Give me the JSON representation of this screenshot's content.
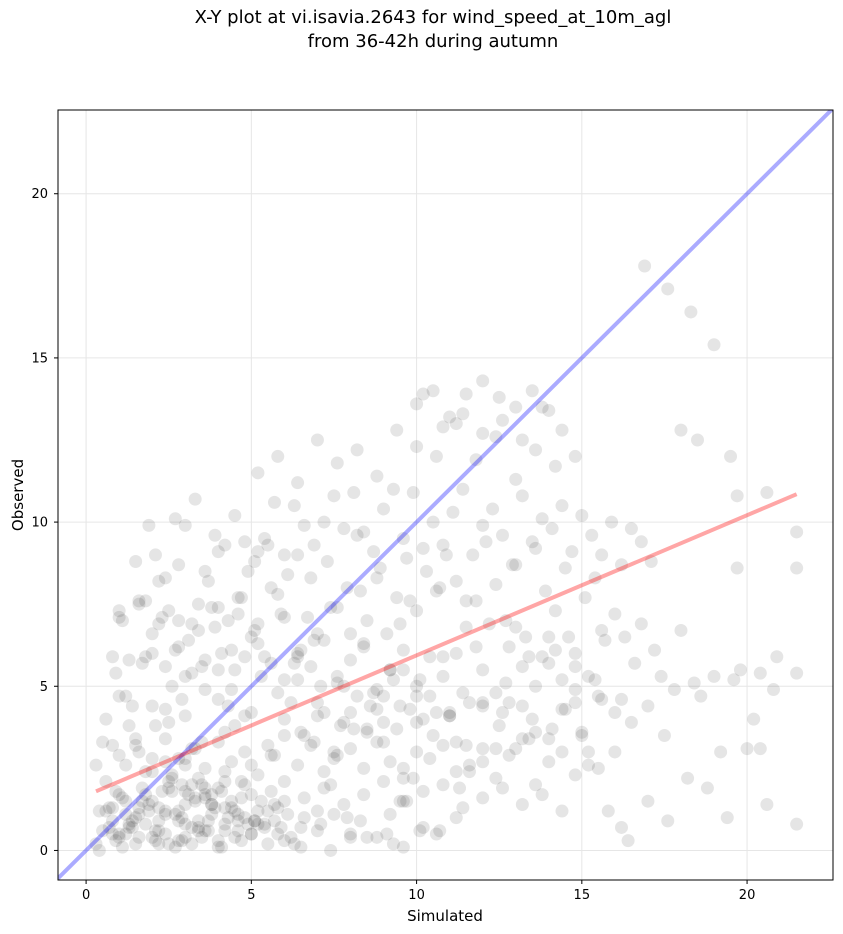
{
  "chart_data": {
    "type": "scatter",
    "title_line1": "X-Y plot at vi.isavia.2643 for wind_speed_at_10m_agl",
    "title_line2": "from 36-42h during autumn",
    "xlabel": "Simulated",
    "ylabel": "Observed",
    "xlim": [
      -0.85,
      22.6
    ],
    "ylim": [
      -0.9,
      22.55
    ],
    "xticks": [
      0,
      5,
      10,
      15,
      20
    ],
    "yticks": [
      0,
      5,
      10,
      15,
      20
    ],
    "grid": true,
    "colors": {
      "points": "#000000",
      "identity_line": "#0000ff",
      "fit_line": "#ff0000"
    },
    "identity_line": {
      "x": [
        -0.85,
        22.6
      ],
      "y": [
        -0.85,
        22.6
      ]
    },
    "fit_line": {
      "x": [
        0.3,
        21.5
      ],
      "y": [
        1.8,
        10.85
      ]
    },
    "points_x": [
      0.5,
      0.8,
      1.0,
      1.2,
      1.4,
      1.6,
      1.8,
      2.0,
      2.2,
      2.4,
      2.6,
      2.8,
      3.0,
      3.2,
      3.4,
      3.6,
      3.8,
      4.0,
      4.2,
      4.4,
      4.6,
      4.8,
      5.0,
      5.2,
      5.4,
      1.1,
      1.5,
      1.9,
      2.3,
      2.7,
      3.1,
      3.5,
      3.9,
      4.3,
      4.7,
      5.1,
      5.5,
      5.9,
      0.9,
      1.3,
      1.7,
      2.1,
      2.5,
      2.9,
      3.3,
      3.7,
      4.1,
      4.5,
      4.9,
      5.3,
      5.7,
      6.1,
      0.6,
      1.0,
      1.4,
      1.8,
      2.2,
      2.6,
      3.0,
      3.4,
      3.8,
      4.2,
      4.6,
      5.0,
      5.4,
      5.8,
      6.2,
      6.6,
      2.4,
      2.8,
      3.2,
      3.6,
      4.0,
      4.4,
      4.8,
      3.0,
      3.4,
      3.8,
      4.2,
      4.6,
      2.6,
      3.0,
      3.4,
      3.8,
      4.2,
      0.3,
      0.4,
      0.6,
      0.8,
      1.0,
      1.2,
      1.5,
      1.8,
      2.1,
      2.4,
      2.7,
      3.0,
      0.5,
      0.7,
      0.9,
      1.1,
      1.3,
      1.6,
      1.9,
      2.2,
      2.5,
      2.8,
      3.2,
      3.6,
      4.0,
      4.5,
      5.0,
      5.5,
      6.0,
      6.5,
      7.0,
      7.5,
      8.0,
      0.6,
      0.9,
      1.2,
      1.5,
      1.8,
      2.1,
      2.4,
      2.7,
      3.0,
      3.3,
      3.6,
      3.9,
      4.2,
      4.5,
      4.8,
      5.1,
      5.4,
      5.7,
      6.0,
      6.3,
      6.6,
      6.9,
      7.2,
      7.5,
      7.8,
      8.1,
      8.4,
      8.7,
      9.0,
      9.3,
      9.6,
      0.8,
      1.1,
      1.4,
      1.7,
      2.0,
      2.3,
      2.6,
      2.9,
      3.2,
      3.5,
      3.8,
      4.1,
      4.4,
      4.7,
      5.0,
      5.3,
      5.6,
      5.9,
      6.2,
      6.5,
      6.8,
      7.1,
      7.4,
      7.7,
      8.0,
      8.3,
      8.6,
      8.9,
      9.2,
      9.5,
      9.8,
      10.1,
      10.4,
      10.7,
      11.0,
      1.0,
      1.3,
      1.6,
      1.9,
      2.2,
      2.5,
      2.8,
      3.1,
      3.4,
      3.7,
      4.0,
      4.3,
      4.6,
      4.9,
      5.2,
      5.5,
      5.8,
      6.1,
      6.4,
      6.7,
      7.0,
      7.3,
      7.6,
      7.9,
      8.2,
      8.5,
      8.8,
      9.1,
      9.4,
      9.7,
      10.0,
      10.3,
      10.6,
      10.9,
      11.2,
      11.5,
      11.8,
      12.1,
      12.4,
      12.7,
      13.0,
      13.3,
      13.6,
      13.9,
      14.2,
      14.5,
      14.8,
      15.1,
      15.4,
      15.7,
      16.0,
      1.5,
      1.8,
      2.1,
      2.4,
      2.7,
      3.0,
      3.3,
      3.6,
      3.9,
      4.2,
      4.5,
      4.8,
      5.1,
      5.4,
      5.7,
      6.0,
      6.3,
      6.6,
      6.9,
      7.2,
      7.5,
      7.8,
      8.1,
      8.4,
      8.7,
      9.0,
      9.3,
      9.6,
      9.9,
      10.2,
      10.5,
      10.8,
      11.1,
      11.4,
      11.7,
      12.0,
      12.3,
      12.6,
      12.9,
      13.2,
      13.5,
      13.8,
      14.1,
      14.4,
      14.7,
      15.0,
      15.3,
      15.6,
      15.9,
      16.2,
      16.5,
      16.8,
      17.1,
      2.0,
      2.4,
      2.8,
      3.2,
      3.6,
      4.0,
      4.4,
      4.8,
      5.2,
      5.6,
      6.0,
      6.4,
      6.8,
      7.2,
      7.6,
      8.0,
      8.4,
      8.8,
      9.2,
      9.6,
      10.0,
      10.4,
      10.8,
      11.2,
      11.6,
      12.0,
      12.4,
      12.8,
      13.2,
      13.6,
      14.0,
      14.4,
      14.8,
      15.2,
      15.6,
      1.0,
      1.5,
      2.0,
      2.5,
      3.0,
      3.5,
      4.0,
      4.5,
      5.0,
      5.5,
      6.0,
      6.5,
      7.0,
      7.5,
      8.0,
      8.5,
      9.0,
      9.5,
      10.0,
      10.5,
      11.0,
      11.5,
      12.0,
      12.5,
      13.0,
      13.5,
      14.0,
      14.5,
      15.0,
      15.5,
      16.0,
      16.5,
      17.0,
      17.5,
      5.2,
      5.8,
      6.4,
      7.0,
      7.6,
      8.2,
      8.8,
      9.4,
      10.0,
      10.6,
      11.2,
      11.8,
      12.4,
      13.0,
      13.6,
      14.2,
      14.8,
      0.8,
      1.2,
      1.6,
      2.0,
      2.4,
      2.8,
      3.2,
      3.6,
      4.0,
      4.4,
      4.8,
      5.2,
      5.6,
      6.0,
      6.4,
      6.8,
      7.2,
      7.6,
      8.0,
      8.4,
      8.8,
      9.2,
      9.6,
      10.0,
      10.4,
      10.8,
      11.2,
      11.6,
      12.0,
      12.4,
      12.8,
      13.2,
      13.6,
      14.0,
      14.4,
      14.8,
      15.2,
      6.0,
      6.6,
      7.2,
      7.8,
      8.4,
      9.0,
      9.6,
      10.2,
      10.8,
      11.4,
      12.0,
      12.6,
      13.2,
      13.8,
      14.4,
      9.5,
      10.0,
      10.5,
      11.0,
      11.5,
      12.0,
      12.5,
      13.0,
      13.5,
      14.0,
      10.2,
      10.8,
      11.4,
      12.0,
      12.6,
      13.2,
      13.8,
      14.4,
      1.0,
      1.6,
      2.2,
      2.8,
      3.4,
      4.0,
      4.6,
      5.2,
      5.8,
      6.4,
      7.0,
      7.6,
      8.2,
      8.8,
      9.4,
      10.0,
      10.6,
      11.2,
      11.8,
      12.4,
      13.0,
      13.6,
      14.2,
      14.8,
      15.4,
      16.0,
      16.6,
      17.2,
      17.8,
      18.4,
      19.0,
      19.6,
      20.2,
      20.8,
      21.5,
      9.0,
      9.6,
      10.2,
      10.8,
      11.4,
      12.0,
      12.6,
      13.2,
      13.8,
      14.4,
      15.0,
      15.6,
      16.2,
      16.8,
      17.4,
      18.0,
      18.6,
      19.2,
      19.8,
      20.4,
      11.0,
      11.6,
      12.2,
      12.8,
      13.4,
      14.0,
      14.6,
      15.2,
      15.8,
      16.4,
      17.0,
      17.6,
      18.2,
      18.8,
      19.4,
      20.0,
      20.6,
      21.5,
      0.3,
      0.7,
      1.0,
      1.3,
      1.7,
      2.0,
      2.4,
      2.9,
      3.3,
      3.7,
      4.2,
      4.7,
      5.1,
      5.6,
      6.0,
      6.5,
      7.0,
      7.4,
      7.9,
      8.3,
      8.8,
      9.3,
      9.7,
      10.2,
      10.7,
      11.2,
      0.4,
      0.8,
      1.2,
      1.6,
      2.0,
      2.5,
      3.0,
      3.5,
      4.1,
      4.7,
      5.2,
      5.8,
      6.3,
      6.9,
      7.4,
      8.0,
      8.5,
      9.1,
      9.6,
      10.1,
      2.2,
      2.9,
      3.6,
      4.3,
      5.0,
      5.7,
      6.4,
      7.1,
      7.8,
      8.5,
      9.2,
      9.9,
      10.6,
      11.3,
      12.0,
      12.7,
      13.4,
      14.1,
      14.8,
      15.5,
      16.2,
      16.9,
      17.6,
      18.3,
      19.0,
      19.7,
      20.4,
      20.9,
      11.5,
      16.3,
      19.7,
      9.8,
      20.6,
      21.5,
      21.5,
      19.5,
      18.5,
      18.0,
      12.8,
      1.0,
      0.7,
      0.9,
      4.4,
      7.3,
      8.1
    ],
    "points_y": [
      0.6,
      0.9,
      0.5,
      1.1,
      0.7,
      1.3,
      0.8,
      1.5,
      0.6,
      1.2,
      1.8,
      0.9,
      1.4,
      2.0,
      0.7,
      1.6,
      1.1,
      1.9,
      0.8,
      1.3,
      0.6,
      1.0,
      0.5,
      1.2,
      0.8,
      1.6,
      1.0,
      1.4,
      1.8,
      1.1,
      1.7,
      2.0,
      1.3,
      1.0,
      1.6,
      0.9,
      1.2,
      0.7,
      0.3,
      0.8,
      1.5,
      0.6,
      1.9,
      1.0,
      1.5,
      0.9,
      1.8,
      1.2,
      0.8,
      1.5,
      0.9,
      1.1,
      1.2,
      0.4,
      0.9,
      1.7,
      1.3,
      2.2,
      1.8,
      0.6,
      1.4,
      2.1,
      0.9,
      1.7,
      0.7,
      1.3,
      0.4,
      1.0,
      0.5,
      1.2,
      0.7,
      1.9,
      0.3,
      1.5,
      2.0,
      0.4,
      0.9,
      1.4,
      0.6,
      1.1,
      2.3,
      2.6,
      2.2,
      1.7,
      2.4,
      0.2,
      1.2,
      2.1,
      0.5,
      2.9,
      1.5,
      0.2,
      2.4,
      0.3,
      2.7,
      0.1,
      2.8,
      3.3,
      0.7,
      1.8,
      0.1,
      3.8,
      0.4,
      1.2,
      0.2,
      2.1,
      0.3,
      0.2,
      0.6,
      0.1,
      0.4,
      0.5,
      0.2,
      0.3,
      0.1,
      0.6,
      1.1,
      0.5,
      4.0,
      5.4,
      4.7,
      3.2,
      5.9,
      3.8,
      4.3,
      6.1,
      5.3,
      3.1,
      4.9,
      6.8,
      3.6,
      5.5,
      4.1,
      6.7,
      5.9,
      2.9,
      7.1,
      5.7,
      3.5,
      6.4,
      4.2,
      2.8,
      5.0,
      3.7,
      6.3,
      4.8,
      3.9,
      5.2,
      2.5,
      5.9,
      7.0,
      4.4,
      5.7,
      6.6,
      7.1,
      5.0,
      4.6,
      6.9,
      5.6,
      7.4,
      6.0,
      4.9,
      7.7,
      6.5,
      5.3,
      8.0,
      7.2,
      4.5,
      6.1,
      8.3,
      5.0,
      7.4,
      3.8,
      6.6,
      7.9,
      4.4,
      8.6,
      5.5,
      6.9,
      7.6,
      5.2,
      4.7,
      8.0,
      4.2,
      7.1,
      5.8,
      7.5,
      9.9,
      8.2,
      7.3,
      8.7,
      6.4,
      7.5,
      8.2,
      9.1,
      7.0,
      7.7,
      8.5,
      6.9,
      9.3,
      7.8,
      8.4,
      9.0,
      7.1,
      6.6,
      8.8,
      7.4,
      8.0,
      9.6,
      7.0,
      8.3,
      6.6,
      7.7,
      8.9,
      7.3,
      8.5,
      7.9,
      9.0,
      8.2,
      6.8,
      7.6,
      9.4,
      8.1,
      7.0,
      8.7,
      6.5,
      9.2,
      7.9,
      7.3,
      8.6,
      6.0,
      7.7,
      8.3,
      6.4,
      7.2,
      8.8,
      7.6,
      9.0,
      8.3,
      10.1,
      9.9,
      10.7,
      8.5,
      9.6,
      9.3,
      10.2,
      9.4,
      8.8,
      9.5,
      10.6,
      9.0,
      10.5,
      9.9,
      9.3,
      10.0,
      10.8,
      9.8,
      10.9,
      9.7,
      9.1,
      10.4,
      11.0,
      9.5,
      10.9,
      9.2,
      10.0,
      9.3,
      10.3,
      11.0,
      9.0,
      9.9,
      10.4,
      9.6,
      8.7,
      10.8,
      9.4,
      10.1,
      9.8,
      10.5,
      9.1,
      10.2,
      9.6,
      9.0,
      10.0,
      8.7,
      9.8,
      9.4,
      8.8,
      6.0,
      5.6,
      6.2,
      5.4,
      5.8,
      5.5,
      6.1,
      5.9,
      6.3,
      5.7,
      5.2,
      6.0,
      5.6,
      6.4,
      5.1,
      5.8,
      6.2,
      4.9,
      5.5,
      6.1,
      4.7,
      5.9,
      5.3,
      6.0,
      4.5,
      5.5,
      4.8,
      6.2,
      4.4,
      5.0,
      5.7,
      4.3,
      4.9,
      5.3,
      4.6,
      4.7,
      3.4,
      4.4,
      3.9,
      4.1,
      3.3,
      4.6,
      3.8,
      4.2,
      3.2,
      4.0,
      3.6,
      4.5,
      3.0,
      4.2,
      3.7,
      3.3,
      4.4,
      3.9,
      3.5,
      4.1,
      3.2,
      4.5,
      3.8,
      3.1,
      4.0,
      3.4,
      4.3,
      3.6,
      4.7,
      3.0,
      3.9,
      4.4,
      3.5,
      11.5,
      12.0,
      11.2,
      12.5,
      11.8,
      12.2,
      11.4,
      12.8,
      12.3,
      12.0,
      13.0,
      11.9,
      12.6,
      11.3,
      12.2,
      11.7,
      12.0,
      3.2,
      2.6,
      3.0,
      2.4,
      3.4,
      2.8,
      3.1,
      2.5,
      3.3,
      2.7,
      3.0,
      2.3,
      2.9,
      3.5,
      2.6,
      3.2,
      2.4,
      2.9,
      3.1,
      2.5,
      3.3,
      2.7,
      2.2,
      3.0,
      2.8,
      3.2,
      2.4,
      2.6,
      3.1,
      2.2,
      2.9,
      3.4,
      2.0,
      2.7,
      3.0,
      2.3,
      2.6,
      2.1,
      1.6,
      1.9,
      1.4,
      1.7,
      2.1,
      1.5,
      1.8,
      2.0,
      1.3,
      1.6,
      1.9,
      1.4,
      1.7,
      1.2,
      1.5,
      13.6,
      14.0,
      13.2,
      13.9,
      14.3,
      13.8,
      13.5,
      14.0,
      13.4,
      13.9,
      12.9,
      13.3,
      12.7,
      13.1,
      12.5,
      13.5,
      12.8,
      7.3,
      7.6,
      6.9,
      7.0,
      6.7,
      7.4,
      7.2,
      9.1,
      4.8,
      5.9,
      4.1,
      5.3,
      4.7,
      4.3,
      3.7,
      5.0,
      4.2,
      3.3,
      6.2,
      3.1,
      6.8,
      3.6,
      6.1,
      5.6,
      5.2,
      4.2,
      5.7,
      6.1,
      4.9,
      5.1,
      5.3,
      5.2,
      4.0,
      4.9,
      5.4,
      4.7,
      5.5,
      4.0,
      5.9,
      4.8,
      4.4,
      4.2,
      5.6,
      5.9,
      5.2,
      3.5,
      6.7,
      4.6,
      6.9,
      5.3,
      6.7,
      4.7,
      3.0,
      5.5,
      3.1,
      4.1,
      2.4,
      6.9,
      4.5,
      5.9,
      6.5,
      6.5,
      3.0,
      1.2,
      0.3,
      1.5,
      0.9,
      2.2,
      1.9,
      1.0,
      3.1,
      1.4,
      0.8,
      2.6,
      1.3,
      1.7,
      0.7,
      1.9,
      2.8,
      1.1,
      2.0,
      1.6,
      0.6,
      1.3,
      2.1,
      0.9,
      1.8,
      1.5,
      0.7,
      1.2,
      2.0,
      1.0,
      0.9,
      0.4,
      0.2,
      1.5,
      0.7,
      0.6,
      1.0,
      0.0,
      1.3,
      0.5,
      1.1,
      0.4,
      0.2,
      0.8,
      0.4,
      0.1,
      0.3,
      0.8,
      0.5,
      0.2,
      3.3,
      0.0,
      0.4,
      3.6,
      0.5,
      0.1,
      0.6,
      0.9,
      0.3,
      1.7,
      4.4,
      2.6,
      1.4,
      5.2,
      0.8,
      3.9,
      0.4,
      1.1,
      2.2,
      0.5,
      1.9,
      2.7,
      5.1,
      3.4,
      3.7,
      4.5,
      2.5,
      0.7,
      17.8,
      17.1,
      16.4,
      15.4,
      10.8,
      5.4,
      5.9,
      7.6,
      6.5,
      8.6,
      4.3,
      10.9,
      8.6,
      9.7,
      12.0,
      12.5,
      12.8
    ]
  }
}
